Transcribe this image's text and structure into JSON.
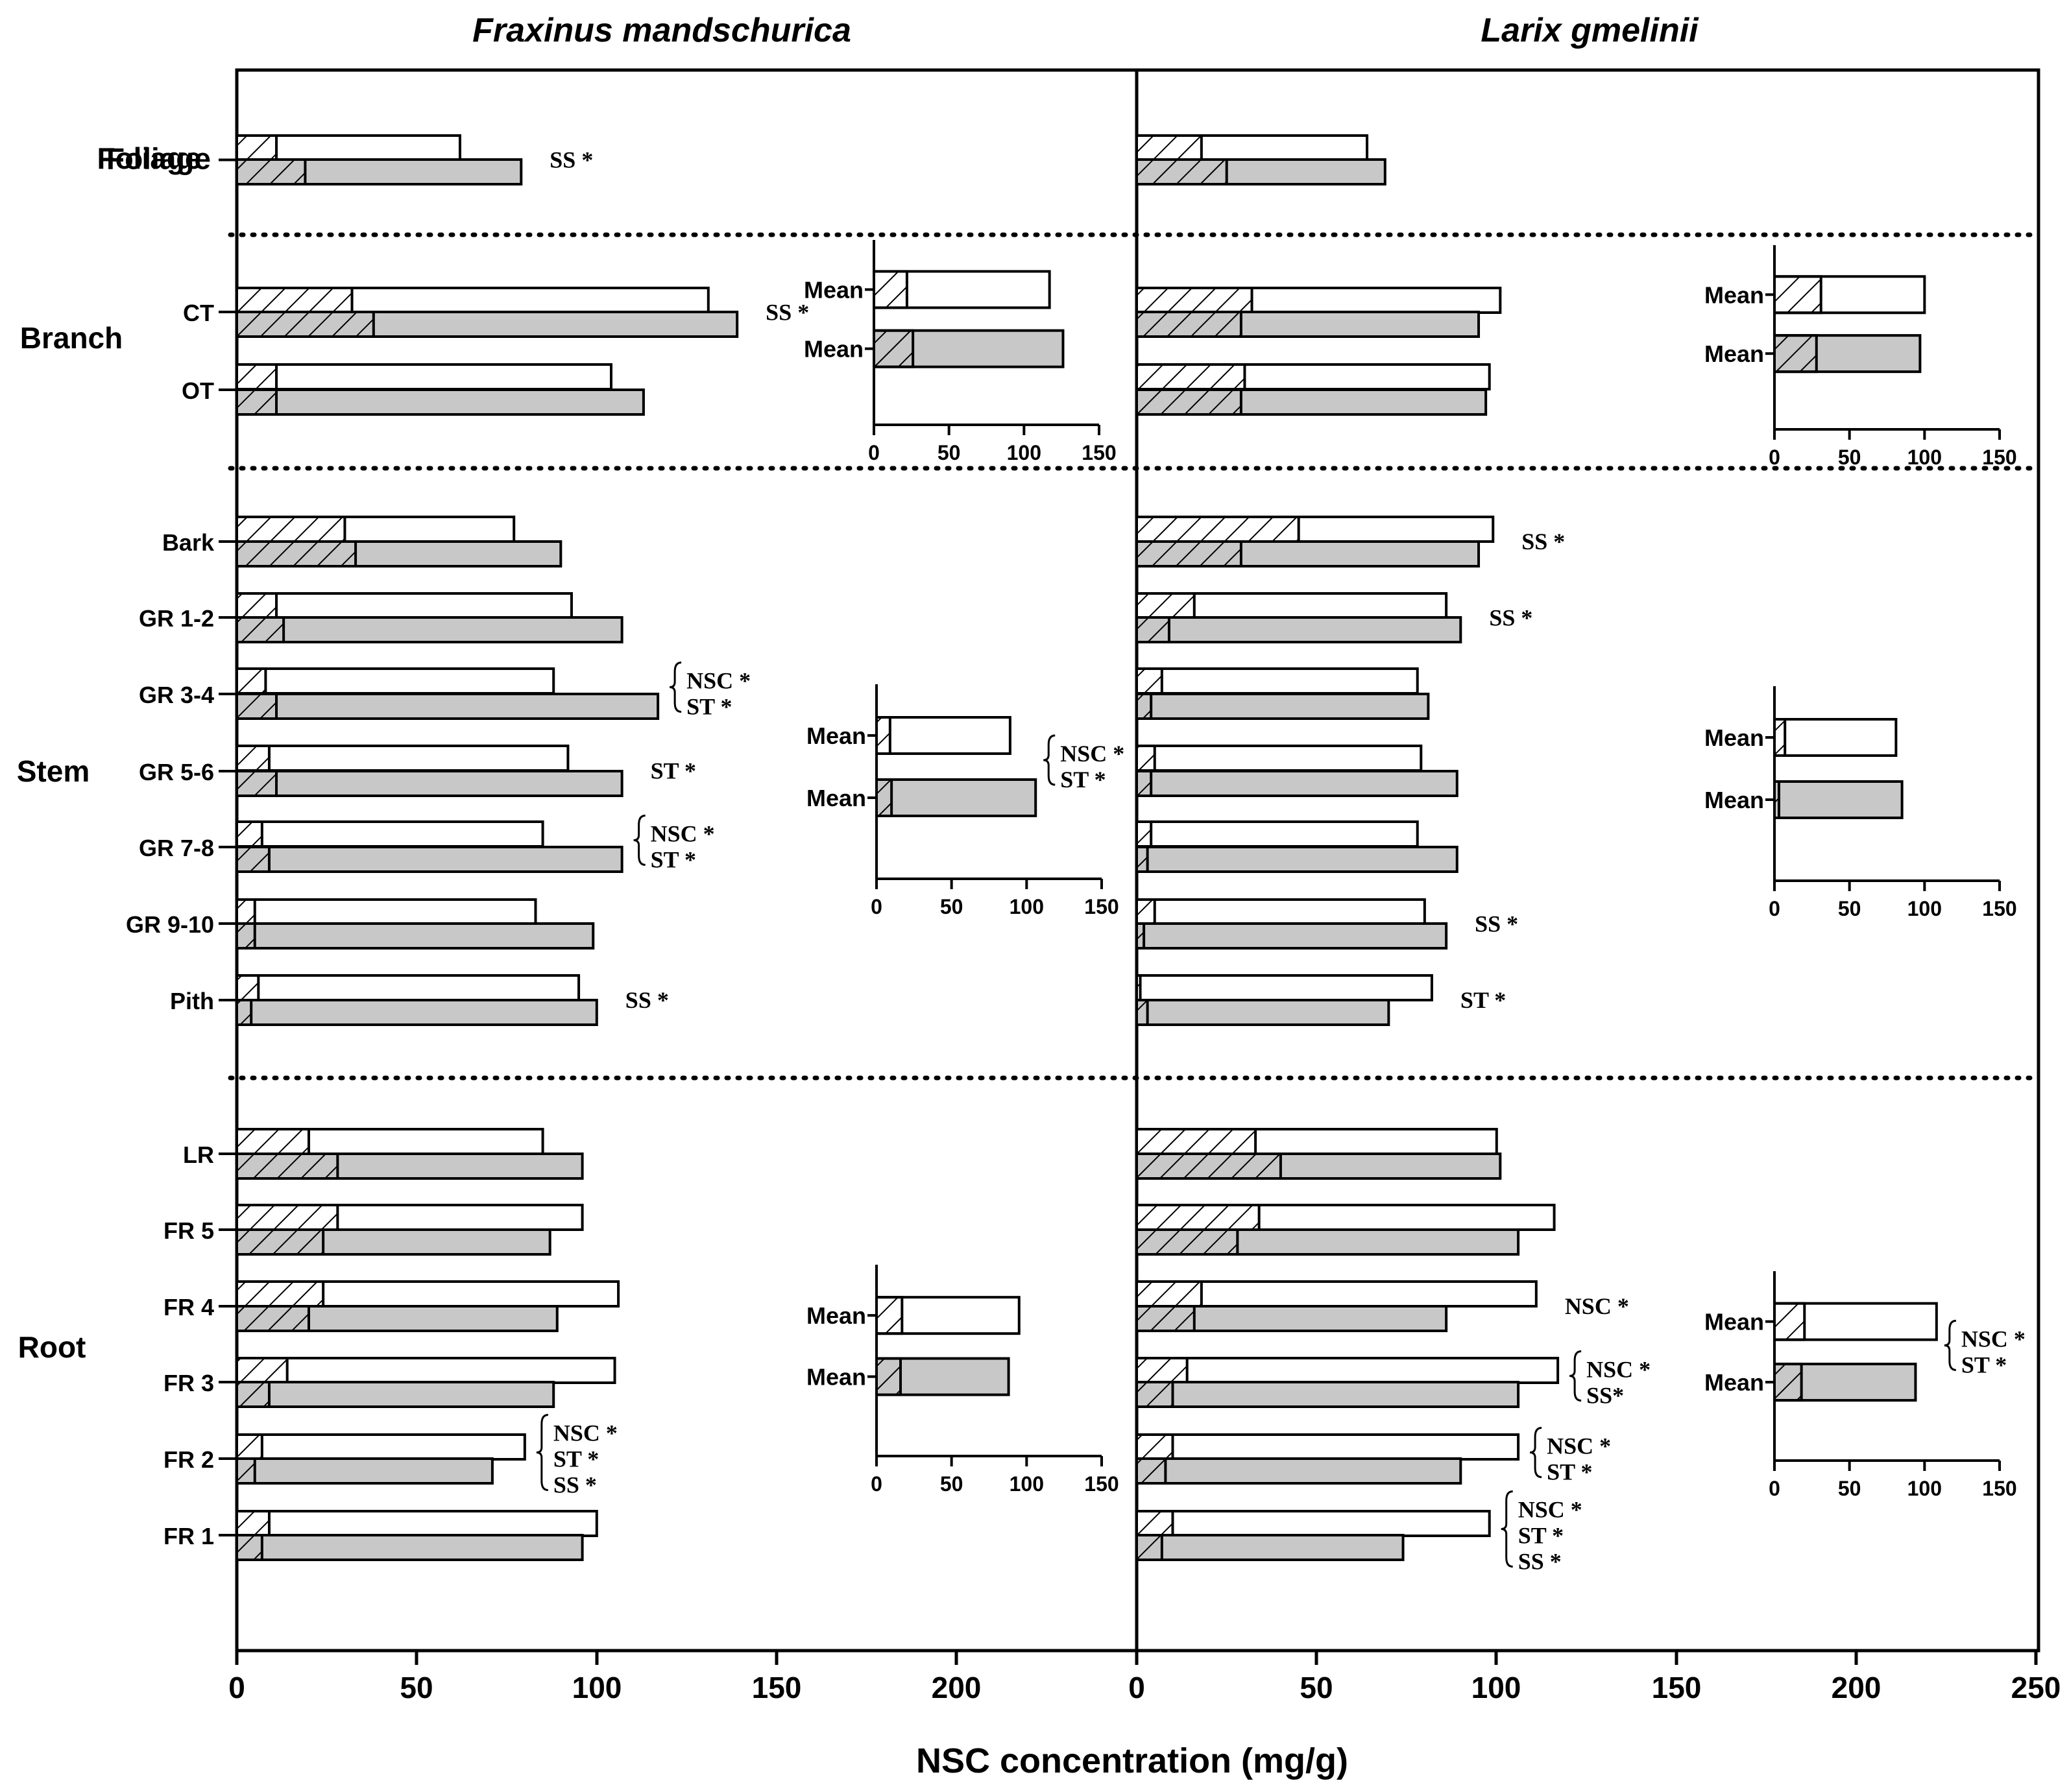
{
  "colors": {
    "axis": "#000000",
    "open_bar": "#ffffff",
    "shaded_bar": "#c8c8c8",
    "hatch": "#000000"
  },
  "chart_data": {
    "type": "bar",
    "orientation": "horizontal",
    "xlabel": "NSC concentration (mg/g)",
    "xlim": [
      0,
      250
    ],
    "xticks": [
      "0",
      "50",
      "100",
      "150",
      "200",
      "250"
    ],
    "inset_xlim": [
      0,
      150
    ],
    "inset_xticks": [
      "0",
      "50",
      "100",
      "150"
    ],
    "series_notes": "Each organ has two bars: upper open bar (white) and lower shaded bar (grey). Hatched segment = starch (ST); remainder = soluble sugar (SS); total length = NSC.",
    "sections": [
      "Foliage",
      "Branch",
      "Stem",
      "Root"
    ],
    "panels": [
      {
        "title": "Fraxinus mandschurica",
        "groups": [
          {
            "label": "Foliage",
            "open_total": 62,
            "open_st": 11,
            "shaded_total": 79,
            "shaded_st": 19,
            "annotations": [
              "SS *"
            ]
          },
          {
            "label": "CT",
            "open_total": 131,
            "open_st": 32,
            "shaded_total": 139,
            "shaded_st": 38,
            "annotations": [
              "SS *"
            ]
          },
          {
            "label": "OT",
            "open_total": 104,
            "open_st": 11,
            "shaded_total": 113,
            "shaded_st": 11,
            "annotations": []
          },
          {
            "label": "Bark",
            "open_total": 77,
            "open_st": 30,
            "shaded_total": 90,
            "shaded_st": 33,
            "annotations": []
          },
          {
            "label": "GR 1-2",
            "open_total": 93,
            "open_st": 11,
            "shaded_total": 107,
            "shaded_st": 13,
            "annotations": []
          },
          {
            "label": "GR 3-4",
            "open_total": 88,
            "open_st": 8,
            "shaded_total": 117,
            "shaded_st": 11,
            "annotations": [
              "NSC *",
              "ST *"
            ]
          },
          {
            "label": "GR 5-6",
            "open_total": 92,
            "open_st": 9,
            "shaded_total": 107,
            "shaded_st": 11,
            "annotations": [
              "ST *"
            ]
          },
          {
            "label": "GR 7-8",
            "open_total": 85,
            "open_st": 7,
            "shaded_total": 107,
            "shaded_st": 9,
            "annotations": [
              "NSC *",
              "ST *"
            ]
          },
          {
            "label": "GR 9-10",
            "open_total": 83,
            "open_st": 5,
            "shaded_total": 99,
            "shaded_st": 5,
            "annotations": []
          },
          {
            "label": "Pith",
            "open_total": 95,
            "open_st": 6,
            "shaded_total": 100,
            "shaded_st": 4,
            "annotations": [
              "SS *"
            ]
          },
          {
            "label": "LR",
            "open_total": 85,
            "open_st": 20,
            "shaded_total": 96,
            "shaded_st": 28,
            "annotations": []
          },
          {
            "label": "FR 5",
            "open_total": 96,
            "open_st": 28,
            "shaded_total": 87,
            "shaded_st": 24,
            "annotations": []
          },
          {
            "label": "FR 4",
            "open_total": 106,
            "open_st": 24,
            "shaded_total": 89,
            "shaded_st": 20,
            "annotations": []
          },
          {
            "label": "FR 3",
            "open_total": 105,
            "open_st": 14,
            "shaded_total": 88,
            "shaded_st": 9,
            "annotations": []
          },
          {
            "label": "FR 2",
            "open_total": 80,
            "open_st": 7,
            "shaded_total": 71,
            "shaded_st": 5,
            "annotations": [
              "NSC *",
              "ST *",
              "SS *"
            ]
          },
          {
            "label": "FR 1",
            "open_total": 100,
            "open_st": 9,
            "shaded_total": 96,
            "shaded_st": 7,
            "annotations": []
          }
        ],
        "insets": [
          {
            "section": "Branch",
            "label_top": "Mean",
            "label_bottom": "Mean",
            "open_total": 117,
            "open_st": 22,
            "shaded_total": 126,
            "shaded_st": 26,
            "annotations": []
          },
          {
            "section": "Stem",
            "label_top": "Mean",
            "label_bottom": "Mean",
            "open_total": 89,
            "open_st": 9,
            "shaded_total": 106,
            "shaded_st": 10,
            "annotations": [
              "NSC *",
              "ST *"
            ]
          },
          {
            "section": "Root",
            "label_top": "Mean",
            "label_bottom": "Mean",
            "open_total": 95,
            "open_st": 17,
            "shaded_total": 88,
            "shaded_st": 16,
            "annotations": []
          }
        ]
      },
      {
        "title": "Larix gmelinii",
        "groups": [
          {
            "label": "Foliage",
            "open_total": 64,
            "open_st": 18,
            "shaded_total": 69,
            "shaded_st": 25,
            "annotations": []
          },
          {
            "label": "CT",
            "open_total": 101,
            "open_st": 32,
            "shaded_total": 95,
            "shaded_st": 29,
            "annotations": []
          },
          {
            "label": "OT",
            "open_total": 98,
            "open_st": 30,
            "shaded_total": 97,
            "shaded_st": 29,
            "annotations": []
          },
          {
            "label": "Bark",
            "open_total": 99,
            "open_st": 45,
            "shaded_total": 95,
            "shaded_st": 29,
            "annotations": [
              "SS *"
            ]
          },
          {
            "label": "GR 1-2",
            "open_total": 86,
            "open_st": 16,
            "shaded_total": 90,
            "shaded_st": 9,
            "annotations": [
              "SS *"
            ]
          },
          {
            "label": "GR 3-4",
            "open_total": 78,
            "open_st": 7,
            "shaded_total": 81,
            "shaded_st": 4,
            "annotations": []
          },
          {
            "label": "GR 5-6",
            "open_total": 79,
            "open_st": 5,
            "shaded_total": 89,
            "shaded_st": 4,
            "annotations": []
          },
          {
            "label": "GR 7-8",
            "open_total": 78,
            "open_st": 4,
            "shaded_total": 89,
            "shaded_st": 3,
            "annotations": []
          },
          {
            "label": "GR 9-10",
            "open_total": 80,
            "open_st": 5,
            "shaded_total": 86,
            "shaded_st": 2,
            "annotations": [
              "SS *"
            ]
          },
          {
            "label": "Pith",
            "open_total": 82,
            "open_st": 1,
            "shaded_total": 70,
            "shaded_st": 3,
            "annotations": [
              "ST *"
            ]
          },
          {
            "label": "LR",
            "open_total": 100,
            "open_st": 33,
            "shaded_total": 101,
            "shaded_st": 40,
            "annotations": []
          },
          {
            "label": "FR 5",
            "open_total": 116,
            "open_st": 34,
            "shaded_total": 106,
            "shaded_st": 28,
            "annotations": []
          },
          {
            "label": "FR 4",
            "open_total": 111,
            "open_st": 18,
            "shaded_total": 86,
            "shaded_st": 16,
            "annotations": [
              "NSC *"
            ]
          },
          {
            "label": "FR 3",
            "open_total": 117,
            "open_st": 14,
            "shaded_total": 106,
            "shaded_st": 10,
            "annotations": [
              "NSC *",
              "SS*"
            ]
          },
          {
            "label": "FR 2",
            "open_total": 106,
            "open_st": 10,
            "shaded_total": 90,
            "shaded_st": 8,
            "annotations": [
              "NSC *",
              "ST *"
            ]
          },
          {
            "label": "FR 1",
            "open_total": 98,
            "open_st": 10,
            "shaded_total": 74,
            "shaded_st": 7,
            "annotations": [
              "NSC *",
              "ST *",
              "SS *"
            ]
          }
        ],
        "insets": [
          {
            "section": "Branch",
            "label_top": "Mean",
            "label_bottom": "Mean",
            "open_total": 100,
            "open_st": 31,
            "shaded_total": 97,
            "shaded_st": 28,
            "annotations": []
          },
          {
            "section": "Stem",
            "label_top": "Mean",
            "label_bottom": "Mean",
            "open_total": 81,
            "open_st": 7,
            "shaded_total": 85,
            "shaded_st": 3,
            "annotations": []
          },
          {
            "section": "Root",
            "label_top": "Mean",
            "label_bottom": "Mean",
            "open_total": 108,
            "open_st": 20,
            "shaded_total": 94,
            "shaded_st": 18,
            "annotations": [
              "NSC *",
              "ST *"
            ]
          }
        ]
      }
    ]
  }
}
